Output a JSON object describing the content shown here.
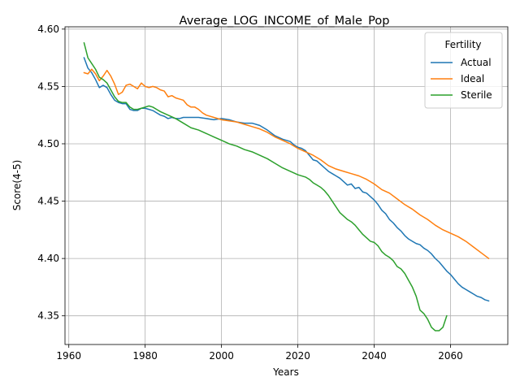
{
  "chart_data": {
    "type": "line",
    "title": "Average_LOG_INCOME_of_Male_Pop",
    "xlabel": "Years",
    "ylabel": "Score(4-5)",
    "xlim": [
      1959,
      2075
    ],
    "ylim": [
      4.325,
      4.602
    ],
    "xticks": [
      1960,
      1980,
      2000,
      2020,
      2040,
      2060
    ],
    "xtick_labels": [
      "1960",
      "1980",
      "2000",
      "2020",
      "2040",
      "2060"
    ],
    "yticks": [
      4.35,
      4.4,
      4.45,
      4.5,
      4.55,
      4.6
    ],
    "ytick_labels": [
      "4.35",
      "4.40",
      "4.45",
      "4.50",
      "4.55",
      "4.60"
    ],
    "grid": true,
    "legend": {
      "title": "Fertility",
      "position": "upper right"
    },
    "series": [
      {
        "name": "Actual",
        "color": "#1f77b4",
        "points": [
          [
            1964,
            4.575
          ],
          [
            1965,
            4.566
          ],
          [
            1966,
            4.562
          ],
          [
            1967,
            4.556
          ],
          [
            1968,
            4.549
          ],
          [
            1969,
            4.551
          ],
          [
            1970,
            4.549
          ],
          [
            1971,
            4.543
          ],
          [
            1972,
            4.538
          ],
          [
            1973,
            4.536
          ],
          [
            1974,
            4.535
          ],
          [
            1975,
            4.535
          ],
          [
            1976,
            4.53
          ],
          [
            1977,
            4.529
          ],
          [
            1978,
            4.529
          ],
          [
            1979,
            4.531
          ],
          [
            1980,
            4.531
          ],
          [
            1981,
            4.53
          ],
          [
            1982,
            4.529
          ],
          [
            1983,
            4.527
          ],
          [
            1984,
            4.525
          ],
          [
            1985,
            4.524
          ],
          [
            1986,
            4.522
          ],
          [
            1987,
            4.523
          ],
          [
            1988,
            4.522
          ],
          [
            1989,
            4.522
          ],
          [
            1990,
            4.523
          ],
          [
            1992,
            4.523
          ],
          [
            1994,
            4.523
          ],
          [
            1996,
            4.522
          ],
          [
            1998,
            4.521
          ],
          [
            2000,
            4.522
          ],
          [
            2002,
            4.521
          ],
          [
            2004,
            4.519
          ],
          [
            2006,
            4.518
          ],
          [
            2008,
            4.518
          ],
          [
            2010,
            4.516
          ],
          [
            2012,
            4.512
          ],
          [
            2014,
            4.507
          ],
          [
            2016,
            4.504
          ],
          [
            2018,
            4.502
          ],
          [
            2019,
            4.499
          ],
          [
            2020,
            4.497
          ],
          [
            2021,
            4.496
          ],
          [
            2022,
            4.494
          ],
          [
            2023,
            4.49
          ],
          [
            2024,
            4.486
          ],
          [
            2025,
            4.485
          ],
          [
            2026,
            4.482
          ],
          [
            2027,
            4.479
          ],
          [
            2028,
            4.476
          ],
          [
            2029,
            4.474
          ],
          [
            2030,
            4.472
          ],
          [
            2031,
            4.47
          ],
          [
            2032,
            4.467
          ],
          [
            2033,
            4.464
          ],
          [
            2034,
            4.465
          ],
          [
            2035,
            4.461
          ],
          [
            2036,
            4.462
          ],
          [
            2037,
            4.458
          ],
          [
            2038,
            4.457
          ],
          [
            2039,
            4.454
          ],
          [
            2040,
            4.451
          ],
          [
            2041,
            4.447
          ],
          [
            2042,
            4.442
          ],
          [
            2043,
            4.439
          ],
          [
            2044,
            4.434
          ],
          [
            2045,
            4.431
          ],
          [
            2046,
            4.427
          ],
          [
            2047,
            4.424
          ],
          [
            2048,
            4.42
          ],
          [
            2049,
            4.417
          ],
          [
            2050,
            4.415
          ],
          [
            2051,
            4.413
          ],
          [
            2052,
            4.412
          ],
          [
            2053,
            4.409
          ],
          [
            2054,
            4.407
          ],
          [
            2055,
            4.404
          ],
          [
            2056,
            4.4
          ],
          [
            2057,
            4.397
          ],
          [
            2058,
            4.393
          ],
          [
            2059,
            4.389
          ],
          [
            2060,
            4.386
          ],
          [
            2061,
            4.382
          ],
          [
            2062,
            4.378
          ],
          [
            2063,
            4.375
          ],
          [
            2064,
            4.373
          ],
          [
            2065,
            4.371
          ],
          [
            2066,
            4.369
          ],
          [
            2067,
            4.367
          ],
          [
            2068,
            4.366
          ],
          [
            2069,
            4.364
          ],
          [
            2070,
            4.363
          ]
        ]
      },
      {
        "name": "Ideal",
        "color": "#ff7f0e",
        "points": [
          [
            1964,
            4.562
          ],
          [
            1965,
            4.561
          ],
          [
            1966,
            4.565
          ],
          [
            1967,
            4.561
          ],
          [
            1968,
            4.555
          ],
          [
            1969,
            4.559
          ],
          [
            1970,
            4.564
          ],
          [
            1971,
            4.559
          ],
          [
            1972,
            4.552
          ],
          [
            1973,
            4.543
          ],
          [
            1974,
            4.545
          ],
          [
            1975,
            4.551
          ],
          [
            1976,
            4.552
          ],
          [
            1977,
            4.55
          ],
          [
            1978,
            4.548
          ],
          [
            1979,
            4.553
          ],
          [
            1980,
            4.55
          ],
          [
            1981,
            4.549
          ],
          [
            1982,
            4.55
          ],
          [
            1983,
            4.549
          ],
          [
            1984,
            4.547
          ],
          [
            1985,
            4.546
          ],
          [
            1986,
            4.541
          ],
          [
            1987,
            4.542
          ],
          [
            1988,
            4.54
          ],
          [
            1989,
            4.539
          ],
          [
            1990,
            4.538
          ],
          [
            1991,
            4.534
          ],
          [
            1992,
            4.532
          ],
          [
            1993,
            4.532
          ],
          [
            1994,
            4.53
          ],
          [
            1995,
            4.527
          ],
          [
            1996,
            4.525
          ],
          [
            1998,
            4.523
          ],
          [
            2000,
            4.521
          ],
          [
            2002,
            4.52
          ],
          [
            2004,
            4.519
          ],
          [
            2006,
            4.517
          ],
          [
            2008,
            4.515
          ],
          [
            2010,
            4.513
          ],
          [
            2012,
            4.51
          ],
          [
            2014,
            4.506
          ],
          [
            2016,
            4.503
          ],
          [
            2018,
            4.5
          ],
          [
            2020,
            4.496
          ],
          [
            2022,
            4.493
          ],
          [
            2024,
            4.49
          ],
          [
            2026,
            4.486
          ],
          [
            2028,
            4.481
          ],
          [
            2030,
            4.478
          ],
          [
            2032,
            4.476
          ],
          [
            2034,
            4.474
          ],
          [
            2036,
            4.472
          ],
          [
            2038,
            4.469
          ],
          [
            2040,
            4.465
          ],
          [
            2042,
            4.46
          ],
          [
            2044,
            4.457
          ],
          [
            2046,
            4.452
          ],
          [
            2048,
            4.447
          ],
          [
            2050,
            4.443
          ],
          [
            2052,
            4.438
          ],
          [
            2054,
            4.434
          ],
          [
            2056,
            4.429
          ],
          [
            2058,
            4.425
          ],
          [
            2060,
            4.422
          ],
          [
            2062,
            4.419
          ],
          [
            2064,
            4.415
          ],
          [
            2066,
            4.41
          ],
          [
            2068,
            4.405
          ],
          [
            2070,
            4.4
          ]
        ]
      },
      {
        "name": "Sterile",
        "color": "#2ca02c",
        "points": [
          [
            1964,
            4.588
          ],
          [
            1965,
            4.575
          ],
          [
            1966,
            4.57
          ],
          [
            1967,
            4.565
          ],
          [
            1968,
            4.558
          ],
          [
            1969,
            4.556
          ],
          [
            1970,
            4.553
          ],
          [
            1971,
            4.547
          ],
          [
            1972,
            4.541
          ],
          [
            1973,
            4.537
          ],
          [
            1974,
            4.536
          ],
          [
            1975,
            4.536
          ],
          [
            1976,
            4.532
          ],
          [
            1977,
            4.53
          ],
          [
            1978,
            4.53
          ],
          [
            1979,
            4.531
          ],
          [
            1980,
            4.532
          ],
          [
            1981,
            4.533
          ],
          [
            1982,
            4.532
          ],
          [
            1983,
            4.53
          ],
          [
            1984,
            4.528
          ],
          [
            1986,
            4.525
          ],
          [
            1988,
            4.522
          ],
          [
            1990,
            4.518
          ],
          [
            1992,
            4.514
          ],
          [
            1994,
            4.512
          ],
          [
            1996,
            4.509
          ],
          [
            1998,
            4.506
          ],
          [
            2000,
            4.503
          ],
          [
            2002,
            4.5
          ],
          [
            2004,
            4.498
          ],
          [
            2006,
            4.495
          ],
          [
            2008,
            4.493
          ],
          [
            2010,
            4.49
          ],
          [
            2012,
            4.487
          ],
          [
            2014,
            4.483
          ],
          [
            2016,
            4.479
          ],
          [
            2018,
            4.476
          ],
          [
            2020,
            4.473
          ],
          [
            2022,
            4.471
          ],
          [
            2023,
            4.469
          ],
          [
            2024,
            4.466
          ],
          [
            2025,
            4.464
          ],
          [
            2026,
            4.462
          ],
          [
            2027,
            4.459
          ],
          [
            2028,
            4.455
          ],
          [
            2029,
            4.45
          ],
          [
            2030,
            4.445
          ],
          [
            2031,
            4.44
          ],
          [
            2032,
            4.437
          ],
          [
            2033,
            4.434
          ],
          [
            2034,
            4.432
          ],
          [
            2035,
            4.429
          ],
          [
            2036,
            4.425
          ],
          [
            2037,
            4.421
          ],
          [
            2038,
            4.418
          ],
          [
            2039,
            4.415
          ],
          [
            2040,
            4.414
          ],
          [
            2041,
            4.411
          ],
          [
            2042,
            4.406
          ],
          [
            2043,
            4.403
          ],
          [
            2044,
            4.401
          ],
          [
            2045,
            4.398
          ],
          [
            2046,
            4.393
          ],
          [
            2047,
            4.391
          ],
          [
            2048,
            4.387
          ],
          [
            2049,
            4.381
          ],
          [
            2050,
            4.375
          ],
          [
            2051,
            4.367
          ],
          [
            2052,
            4.355
          ],
          [
            2053,
            4.352
          ],
          [
            2054,
            4.347
          ],
          [
            2055,
            4.34
          ],
          [
            2056,
            4.337
          ],
          [
            2057,
            4.337
          ],
          [
            2058,
            4.34
          ],
          [
            2059,
            4.35
          ]
        ]
      }
    ]
  }
}
